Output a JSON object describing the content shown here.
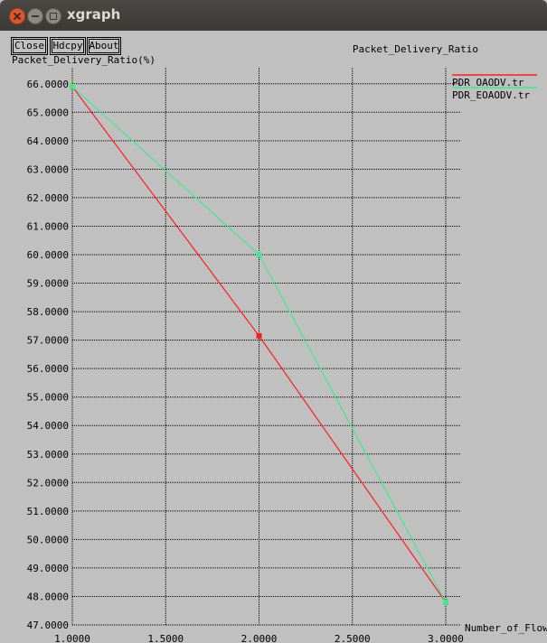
{
  "window": {
    "title": "xgraph"
  },
  "toolbar": {
    "close_label": "Close",
    "hdcpy_label": "Hdcpy",
    "about_label": "About"
  },
  "chart_data": {
    "type": "line",
    "title": "Packet_Delivery_Ratio",
    "xlabel": "Number_of_Flows",
    "ylabel": "Packet_Delivery_Ratio(%)",
    "xlim": [
      1,
      3
    ],
    "ylim": [
      47,
      66.5
    ],
    "x_ticks": [
      "1.0000",
      "1.5000",
      "2.0000",
      "2.5000",
      "3.0000"
    ],
    "y_ticks": [
      "47.0000",
      "48.0000",
      "49.0000",
      "50.0000",
      "51.0000",
      "52.0000",
      "53.0000",
      "54.0000",
      "55.0000",
      "56.0000",
      "57.0000",
      "58.0000",
      "59.0000",
      "60.0000",
      "61.0000",
      "62.0000",
      "63.0000",
      "64.0000",
      "65.0000",
      "66.0000"
    ],
    "grid": true,
    "legend_position": "top-right",
    "series": [
      {
        "name": "PDR_OAODV.tr",
        "color": "#ff1a1a",
        "x": [
          1,
          2,
          3
        ],
        "y": [
          65.9,
          57.15,
          47.8
        ]
      },
      {
        "name": "PDR_EOAODV.tr",
        "color": "#40e890",
        "x": [
          1,
          2,
          3
        ],
        "y": [
          65.9,
          60.0,
          47.8
        ]
      }
    ]
  }
}
